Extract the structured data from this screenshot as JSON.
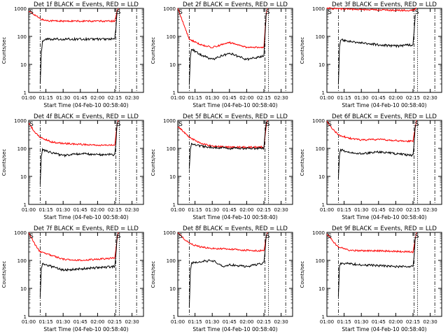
{
  "chart_data": [
    {
      "type": "line",
      "title": "Det 1f BLACK = Events, RED = LLD",
      "ylabel": "Counts/sec",
      "xlabel": "Start Time (04-Feb-10 00:58:40)",
      "x_ticks": [
        "01:00",
        "01:15",
        "01:30",
        "01:45",
        "02:00",
        "02:15",
        "02:30"
      ],
      "y_ticks": [
        "1",
        "10",
        "100",
        "1000"
      ],
      "y_scale": "log",
      "ylim": [
        1,
        1000
      ],
      "xlim": [
        "01:00",
        "02:40"
      ],
      "markers": [
        "S",
        "S"
      ],
      "vlines": [
        "01:10",
        "02:16",
        "02:19",
        "02:34"
      ],
      "series": [
        {
          "color": "#ff0000",
          "x": [
            "01:00",
            "01:05",
            "01:10",
            "01:15",
            "01:30",
            "01:45",
            "02:00",
            "02:15",
            "02:17",
            "02:18"
          ],
          "y": [
            800,
            600,
            420,
            370,
            350,
            350,
            350,
            350,
            800,
            1000
          ]
        },
        {
          "color": "#000000",
          "x": [
            "01:10",
            "01:11",
            "01:12",
            "01:15",
            "01:30",
            "01:45",
            "02:00",
            "02:15",
            "02:16",
            "02:17"
          ],
          "y": [
            2,
            25,
            70,
            80,
            80,
            80,
            80,
            80,
            200,
            800
          ]
        }
      ]
    },
    {
      "type": "line",
      "title": "Det 2f BLACK = Events, RED = LLD",
      "ylabel": "Counts/sec",
      "xlabel": "Start Time (04-Feb-10 00:58:40)",
      "x_ticks": [
        "01:00",
        "01:15",
        "01:30",
        "01:45",
        "02:00",
        "02:15",
        "02:30"
      ],
      "y_ticks": [
        "1",
        "10",
        "100",
        "1000"
      ],
      "y_scale": "log",
      "ylim": [
        1,
        1000
      ],
      "xlim": [
        "01:00",
        "02:40"
      ],
      "markers": [
        "S",
        "S"
      ],
      "vlines": [
        "01:10",
        "02:16",
        "02:19",
        "02:34"
      ],
      "series": [
        {
          "color": "#ff0000",
          "x": [
            "01:00",
            "01:10",
            "01:20",
            "01:30",
            "01:45",
            "02:00",
            "02:15",
            "02:17",
            "02:18"
          ],
          "y": [
            1000,
            80,
            50,
            40,
            60,
            40,
            40,
            600,
            1000
          ]
        },
        {
          "color": "#000000",
          "x": [
            "01:10",
            "01:11",
            "01:12",
            "01:20",
            "01:30",
            "01:45",
            "02:00",
            "02:15",
            "02:16",
            "02:17"
          ],
          "y": [
            2,
            20,
            35,
            22,
            15,
            25,
            15,
            20,
            100,
            700
          ]
        }
      ]
    },
    {
      "type": "line",
      "title": "Det 3f BLACK = Events, RED = LLD",
      "ylabel": "Counts/sec",
      "xlabel": "Start Time (04-Feb-10 00:58:40)",
      "x_ticks": [
        "01:00",
        "01:15",
        "01:30",
        "01:45",
        "02:00",
        "02:15",
        "02:30"
      ],
      "y_ticks": [
        "1",
        "10",
        "100",
        "1000"
      ],
      "y_scale": "log",
      "ylim": [
        1,
        1000
      ],
      "xlim": [
        "01:00",
        "02:40"
      ],
      "markers": [
        "S",
        "S"
      ],
      "vlines": [
        "01:10",
        "02:16",
        "02:19",
        "02:34"
      ],
      "series": [
        {
          "color": "#ff0000",
          "x": [
            "01:00",
            "01:15",
            "01:30",
            "01:45",
            "02:00",
            "02:15",
            "02:18"
          ],
          "y": [
            1000,
            950,
            900,
            880,
            850,
            850,
            1000
          ]
        },
        {
          "color": "#000000",
          "x": [
            "01:10",
            "01:11",
            "01:12",
            "01:15",
            "01:30",
            "01:45",
            "02:00",
            "02:15",
            "02:16",
            "02:17"
          ],
          "y": [
            2,
            40,
            80,
            70,
            60,
            50,
            45,
            50,
            150,
            600
          ]
        }
      ]
    },
    {
      "type": "line",
      "title": "Det 4f BLACK = Events, RED = LLD",
      "ylabel": "Counts/sec",
      "xlabel": "Start Time (04-Feb-10 00:58:40)",
      "x_ticks": [
        "01:00",
        "01:15",
        "01:30",
        "01:45",
        "02:00",
        "02:15",
        "02:30"
      ],
      "y_ticks": [
        "1",
        "10",
        "100",
        "1000"
      ],
      "y_scale": "log",
      "ylim": [
        1,
        1000
      ],
      "xlim": [
        "01:00",
        "02:40"
      ],
      "markers": [
        "S",
        "S"
      ],
      "vlines": [
        "01:10",
        "02:16",
        "02:19",
        "02:34"
      ],
      "series": [
        {
          "color": "#ff0000",
          "x": [
            "01:00",
            "01:05",
            "01:10",
            "01:20",
            "01:30",
            "01:45",
            "02:00",
            "02:15",
            "02:17",
            "02:18"
          ],
          "y": [
            800,
            400,
            250,
            170,
            150,
            140,
            130,
            130,
            700,
            1000
          ]
        },
        {
          "color": "#000000",
          "x": [
            "01:10",
            "01:11",
            "01:12",
            "01:20",
            "01:30",
            "01:45",
            "02:00",
            "02:15",
            "02:16",
            "02:17"
          ],
          "y": [
            5,
            50,
            90,
            70,
            55,
            65,
            60,
            60,
            150,
            800
          ]
        }
      ]
    },
    {
      "type": "line",
      "title": "Det 5f BLACK = Events, RED = LLD",
      "ylabel": "Counts/sec",
      "xlabel": "Start Time (04-Feb-10 00:58:40)",
      "x_ticks": [
        "01:00",
        "01:15",
        "01:30",
        "01:45",
        "02:00",
        "02:15",
        "02:30"
      ],
      "y_ticks": [
        "1",
        "10",
        "100",
        "1000"
      ],
      "y_scale": "log",
      "ylim": [
        1,
        1000
      ],
      "xlim": [
        "01:00",
        "02:40"
      ],
      "markers": [
        "S",
        "S"
      ],
      "vlines": [
        "01:10",
        "02:16",
        "02:19",
        "02:34"
      ],
      "series": [
        {
          "color": "#ff0000",
          "x": [
            "01:00",
            "01:05",
            "01:10",
            "01:20",
            "01:30",
            "01:45",
            "02:00",
            "02:15",
            "02:17",
            "02:18"
          ],
          "y": [
            600,
            400,
            250,
            150,
            120,
            110,
            110,
            110,
            600,
            1000
          ]
        },
        {
          "color": "#000000",
          "x": [
            "01:10",
            "01:11",
            "01:12",
            "01:20",
            "01:30",
            "01:45",
            "02:00",
            "02:15",
            "02:16",
            "02:17"
          ],
          "y": [
            20,
            100,
            140,
            120,
            110,
            100,
            100,
            100,
            300,
            900
          ]
        }
      ]
    },
    {
      "type": "line",
      "title": "Det 6f BLACK = Events, RED = LLD",
      "ylabel": "Counts/sec",
      "xlabel": "Start Time (04-Feb-10 00:58:40)",
      "x_ticks": [
        "01:00",
        "01:15",
        "01:30",
        "01:45",
        "02:00",
        "02:15",
        "02:30"
      ],
      "y_ticks": [
        "1",
        "10",
        "100",
        "1000"
      ],
      "y_scale": "log",
      "ylim": [
        1,
        1000
      ],
      "xlim": [
        "01:00",
        "02:40"
      ],
      "markers": [
        "S",
        "S"
      ],
      "vlines": [
        "01:10",
        "02:16",
        "02:19",
        "02:34"
      ],
      "series": [
        {
          "color": "#ff0000",
          "x": [
            "01:00",
            "01:05",
            "01:10",
            "01:20",
            "01:30",
            "01:45",
            "02:00",
            "02:15",
            "02:17",
            "02:18"
          ],
          "y": [
            900,
            500,
            300,
            230,
            200,
            210,
            190,
            180,
            600,
            1000
          ]
        },
        {
          "color": "#000000",
          "x": [
            "01:10",
            "01:11",
            "01:12",
            "01:20",
            "01:30",
            "01:45",
            "02:00",
            "02:15",
            "02:16",
            "02:17"
          ],
          "y": [
            8,
            60,
            90,
            70,
            65,
            75,
            65,
            55,
            150,
            700
          ]
        }
      ]
    },
    {
      "type": "line",
      "title": "Det 7f BLACK = Events, RED = LLD",
      "ylabel": "Counts/sec",
      "xlabel": "Start Time (04-Feb-10 00:58:40)",
      "x_ticks": [
        "01:00",
        "01:15",
        "01:30",
        "01:45",
        "02:00",
        "02:15",
        "02:30"
      ],
      "y_ticks": [
        "1",
        "10",
        "100",
        "1000"
      ],
      "y_scale": "log",
      "ylim": [
        1,
        1000
      ],
      "xlim": [
        "01:00",
        "02:40"
      ],
      "markers": [
        "S",
        "S"
      ],
      "vlines": [
        "01:10",
        "02:16",
        "02:19",
        "02:34"
      ],
      "series": [
        {
          "color": "#ff0000",
          "x": [
            "01:00",
            "01:05",
            "01:10",
            "01:20",
            "01:30",
            "01:45",
            "02:00",
            "02:15",
            "02:17",
            "02:18"
          ],
          "y": [
            1000,
            400,
            200,
            150,
            110,
            100,
            110,
            120,
            600,
            1000
          ]
        },
        {
          "color": "#000000",
          "x": [
            "01:10",
            "01:11",
            "01:12",
            "01:20",
            "01:30",
            "01:45",
            "02:00",
            "02:15",
            "02:16",
            "02:17"
          ],
          "y": [
            5,
            50,
            80,
            60,
            45,
            50,
            55,
            60,
            150,
            800
          ]
        }
      ]
    },
    {
      "type": "line",
      "title": "Det 8f BLACK = Events, RED = LLD",
      "ylabel": "Counts/sec",
      "xlabel": "Start Time (04-Feb-10 00:58:40)",
      "x_ticks": [
        "01:00",
        "01:15",
        "01:30",
        "01:45",
        "02:00",
        "02:15",
        "02:30"
      ],
      "y_ticks": [
        "1",
        "10",
        "100",
        "1000"
      ],
      "y_scale": "log",
      "ylim": [
        1,
        1000
      ],
      "xlim": [
        "01:00",
        "02:40"
      ],
      "markers": [
        "S",
        "S"
      ],
      "vlines": [
        "01:10",
        "02:16",
        "02:19",
        "02:34"
      ],
      "series": [
        {
          "color": "#ff0000",
          "x": [
            "01:00",
            "01:05",
            "01:10",
            "01:20",
            "01:30",
            "01:45",
            "02:00",
            "02:15",
            "02:17",
            "02:18"
          ],
          "y": [
            1000,
            600,
            400,
            300,
            270,
            250,
            230,
            220,
            700,
            1000
          ]
        },
        {
          "color": "#000000",
          "x": [
            "01:10",
            "01:11",
            "01:12",
            "01:20",
            "01:30",
            "01:40",
            "01:45",
            "02:00",
            "02:15",
            "02:16",
            "02:17"
          ],
          "y": [
            2,
            40,
            80,
            90,
            100,
            60,
            70,
            60,
            80,
            200,
            800
          ]
        }
      ]
    },
    {
      "type": "line",
      "title": "Det 9f BLACK = Events, RED = LLD",
      "ylabel": "Counts/sec",
      "xlabel": "Start Time (04-Feb-10 00:58:40)",
      "x_ticks": [
        "01:00",
        "01:15",
        "01:30",
        "01:45",
        "02:00",
        "02:15",
        "02:30"
      ],
      "y_ticks": [
        "1",
        "10",
        "100",
        "1000"
      ],
      "y_scale": "log",
      "ylim": [
        1,
        1000
      ],
      "xlim": [
        "01:00",
        "02:40"
      ],
      "markers": [
        "S",
        "S"
      ],
      "vlines": [
        "01:10",
        "02:16",
        "02:19",
        "02:34"
      ],
      "series": [
        {
          "color": "#ff0000",
          "x": [
            "01:00",
            "01:05",
            "01:10",
            "01:20",
            "01:30",
            "01:45",
            "02:00",
            "02:15",
            "02:17",
            "02:18"
          ],
          "y": [
            900,
            500,
            300,
            230,
            220,
            220,
            210,
            200,
            600,
            1000
          ]
        },
        {
          "color": "#000000",
          "x": [
            "01:10",
            "01:11",
            "01:12",
            "01:20",
            "01:30",
            "01:45",
            "02:00",
            "02:15",
            "02:16",
            "02:17"
          ],
          "y": [
            5,
            60,
            80,
            75,
            70,
            65,
            60,
            60,
            150,
            700
          ]
        }
      ]
    }
  ]
}
